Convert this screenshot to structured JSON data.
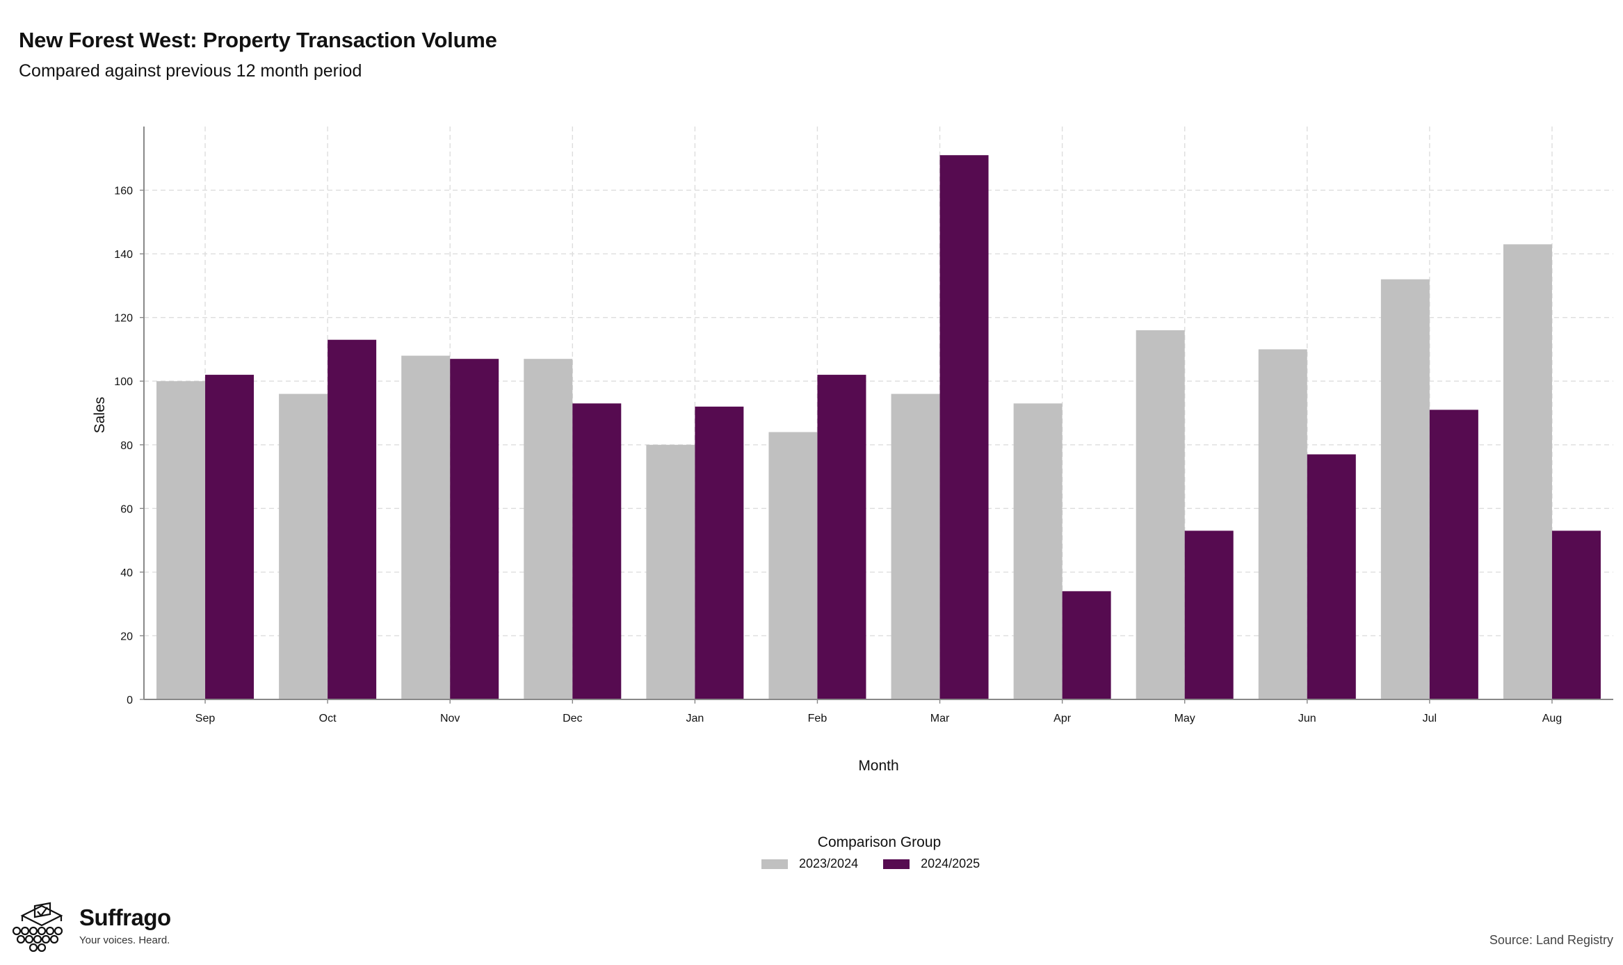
{
  "header": {
    "title": "New Forest West: Property Transaction Volume",
    "subtitle": "Compared against previous 12 month period"
  },
  "legend": {
    "title": "Comparison Group"
  },
  "branding": {
    "logo_name": "Suffrago",
    "logo_tagline": "Your voices. Heard.",
    "logo_icon": "ballot-box-icon"
  },
  "footer": {
    "source": "Source: Land Registry"
  },
  "colors": {
    "series_2023_2024": "#c0c0c0",
    "series_2024_2025": "#560b50",
    "grid": "#dddddd",
    "axis": "#888888"
  },
  "chart_data": {
    "type": "bar",
    "xlabel": "Month",
    "ylabel": "Sales",
    "ylim": [
      0,
      180
    ],
    "yticks": [
      0,
      20,
      40,
      60,
      80,
      100,
      120,
      140,
      160
    ],
    "grid": true,
    "legend_position": "bottom-center",
    "categories": [
      "Sep",
      "Oct",
      "Nov",
      "Dec",
      "Jan",
      "Feb",
      "Mar",
      "Apr",
      "May",
      "Jun",
      "Jul",
      "Aug"
    ],
    "series": [
      {
        "name": "2023/2024",
        "color": "#c0c0c0",
        "values": [
          100,
          96,
          108,
          107,
          80,
          84,
          96,
          93,
          116,
          110,
          132,
          143
        ]
      },
      {
        "name": "2024/2025",
        "color": "#560b50",
        "values": [
          102,
          113,
          107,
          93,
          92,
          102,
          171,
          34,
          53,
          77,
          91,
          53
        ]
      }
    ]
  }
}
